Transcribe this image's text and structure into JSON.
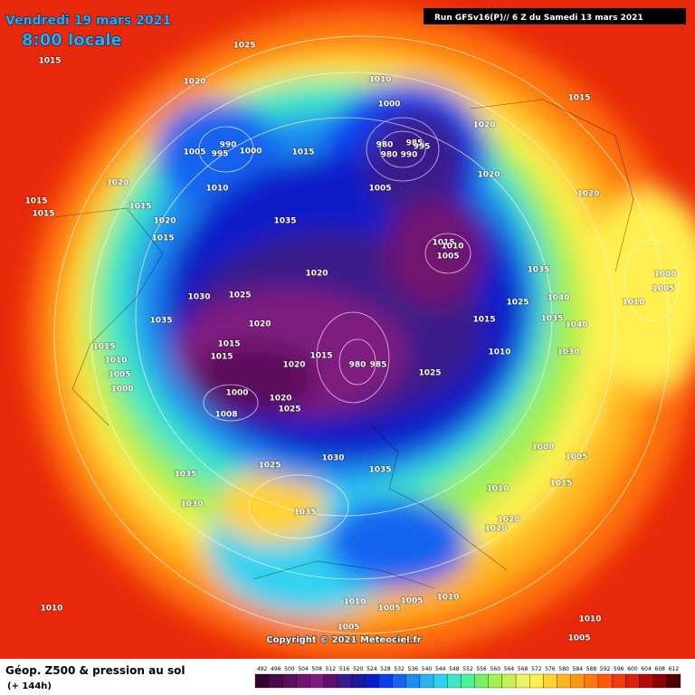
{
  "header": {
    "date": "Vendredi 19 mars 2021",
    "time": "8:00 locale",
    "run": "Run GFSv16(P)// 6 Z du Samedi 13 mars 2021"
  },
  "footer": {
    "title": "Géop. Z500 & pression au sol",
    "subtitle": "(+ 144h)",
    "copyright": "Copyright © 2021 Meteociel.fr"
  },
  "colorbar": {
    "ticks": [
      492,
      496,
      500,
      504,
      508,
      512,
      516,
      520,
      524,
      528,
      532,
      536,
      540,
      544,
      548,
      552,
      556,
      560,
      564,
      568,
      572,
      576,
      580,
      584,
      588,
      592,
      596,
      600,
      604,
      608,
      612
    ],
    "colors": [
      "#300030",
      "#4a0a4a",
      "#5c0e5c",
      "#701470",
      "#801a80",
      "#60106a",
      "#3a1a8a",
      "#1a1aa0",
      "#0a1ec8",
      "#0a3cf0",
      "#1464f0",
      "#1e8cf0",
      "#28b4f0",
      "#30d2f0",
      "#3ce6c8",
      "#50f096",
      "#78f064",
      "#a0f050",
      "#c8f050",
      "#f0f064",
      "#fff050",
      "#ffd232",
      "#ffb41e",
      "#ff9614",
      "#ff780a",
      "#ff5a0a",
      "#f03c0a",
      "#dc1e0a",
      "#b40a0a",
      "#8c0000",
      "#500000"
    ]
  },
  "isobar_labels": [
    1025,
    1015,
    1020,
    1010,
    1015,
    1000,
    1020,
    990,
    995,
    1000,
    1005,
    1015,
    980,
    985,
    995,
    980,
    990,
    1020,
    1010,
    1005,
    1020,
    1020,
    1015,
    1015,
    1015,
    1020,
    1035,
    1015,
    1015,
    1010,
    1005,
    1035,
    1020,
    1000,
    1010,
    1005,
    1030,
    1025,
    1040,
    1025,
    1035,
    1020,
    1035,
    1040,
    1015,
    1015,
    1015,
    1015,
    1015,
    1010,
    1030,
    1010,
    985,
    980,
    1020,
    1005,
    1025,
    1000,
    1000,
    1020,
    1008,
    1025,
    1030,
    1025,
    1035,
    1000,
    1005,
    1035,
    1015,
    1010,
    1030,
    1035,
    1020,
    1020,
    1010,
    1005,
    1005,
    1010,
    1010,
    1010,
    1005,
    1005
  ]
}
